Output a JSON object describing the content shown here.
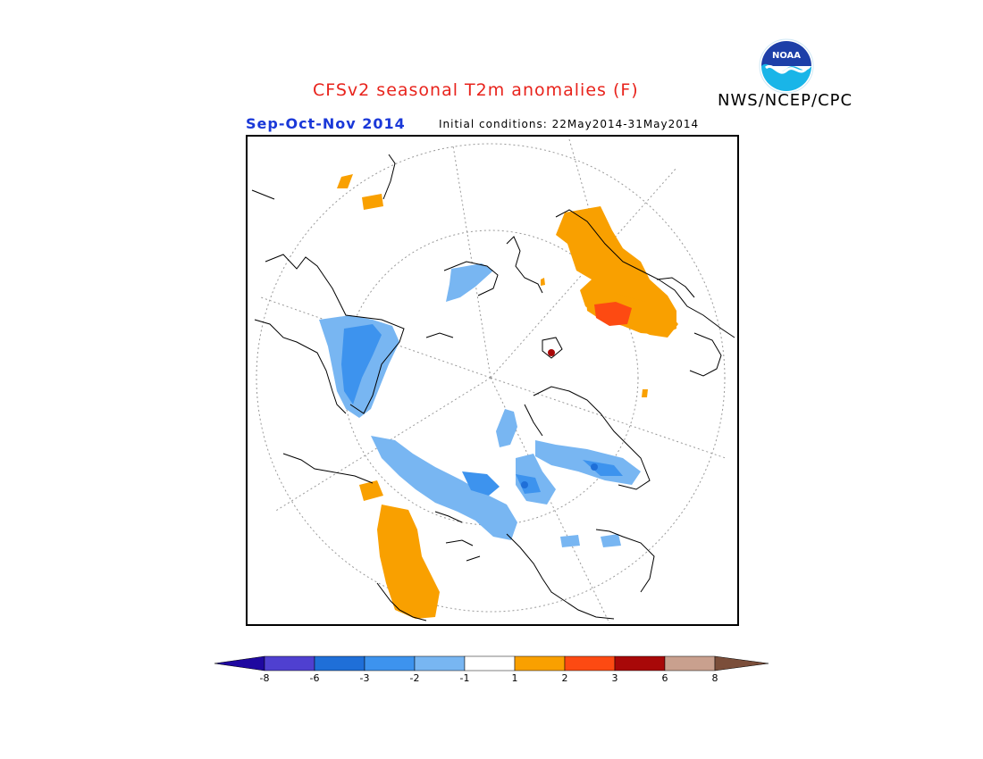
{
  "title": "CFSv2 seasonal T2m anomalies (F)",
  "agency": "NWS/NCEP/CPC",
  "season": "Sep-Oct-Nov 2014",
  "initial_conditions": "Initial conditions: 22May2014-31May2014",
  "logo": {
    "text": "NOAA",
    "icon": "noaa-logo-icon"
  },
  "colorbar": {
    "labels": [
      "-8",
      "-6",
      "-3",
      "-2",
      "-1",
      "1",
      "2",
      "3",
      "6",
      "8"
    ],
    "colors": [
      "#1f08a0",
      "#4f40d0",
      "#1f6fd8",
      "#3d93ee",
      "#78b6f2",
      "#ffffff",
      "#f9a000",
      "#fd4a12",
      "#a80808",
      "#c9a08e",
      "#7b4e3a"
    ]
  },
  "map": {
    "projection": "north-polar-stereographic",
    "anomaly_regions": [
      "warm: eastern Siberia / Russian Far East",
      "cold: Europe / Scandinavia",
      "cold: northern Canada / Arctic archipelago",
      "warm: western United States",
      "cold: Greenland"
    ]
  }
}
